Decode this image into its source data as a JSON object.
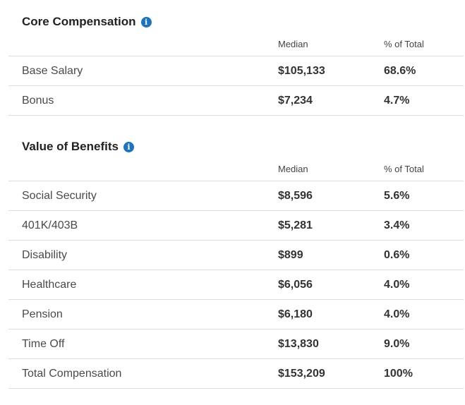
{
  "core": {
    "title": "Core Compensation",
    "info_icon": "info-icon",
    "headers": {
      "median": "Median",
      "pct": "% of Total"
    },
    "rows": [
      {
        "label": "Base Salary",
        "median": "$105,133",
        "pct": "68.6%"
      },
      {
        "label": "Bonus",
        "median": "$7,234",
        "pct": "4.7%"
      }
    ]
  },
  "benefits": {
    "title": "Value of Benefits",
    "info_icon": "info-icon",
    "headers": {
      "median": "Median",
      "pct": "% of Total"
    },
    "rows": [
      {
        "label": "Social Security",
        "median": "$8,596",
        "pct": "5.6%"
      },
      {
        "label": "401K/403B",
        "median": "$5,281",
        "pct": "3.4%"
      },
      {
        "label": "Disability",
        "median": "$899",
        "pct": "0.6%"
      },
      {
        "label": "Healthcare",
        "median": "$6,056",
        "pct": "4.0%"
      },
      {
        "label": "Pension",
        "median": "$6,180",
        "pct": "4.0%"
      },
      {
        "label": "Time Off",
        "median": "$13,830",
        "pct": "9.0%"
      },
      {
        "label": "Total Compensation",
        "median": "$153,209",
        "pct": "100%"
      }
    ]
  }
}
